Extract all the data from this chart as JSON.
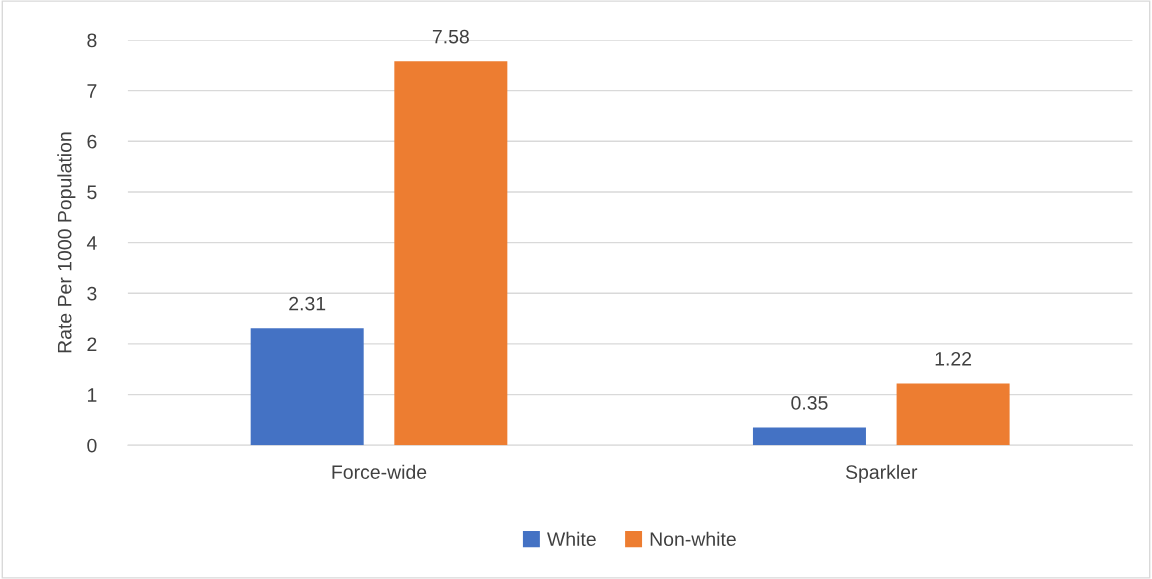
{
  "chart_data": {
    "type": "bar",
    "ylabel": "Rate Per 1000 Population",
    "categories": [
      "Force-wide",
      "Sparkler"
    ],
    "series": [
      {
        "name": "White",
        "color": "#4472c4",
        "values": [
          2.31,
          0.35
        ]
      },
      {
        "name": "Non-white",
        "color": "#ed7d31",
        "values": [
          7.58,
          1.22
        ]
      }
    ],
    "ylim": [
      0,
      8
    ],
    "yticks": [
      0,
      1,
      2,
      3,
      4,
      5,
      6,
      7,
      8
    ],
    "grid": "y",
    "legend": "bottom",
    "data_labels": true
  }
}
